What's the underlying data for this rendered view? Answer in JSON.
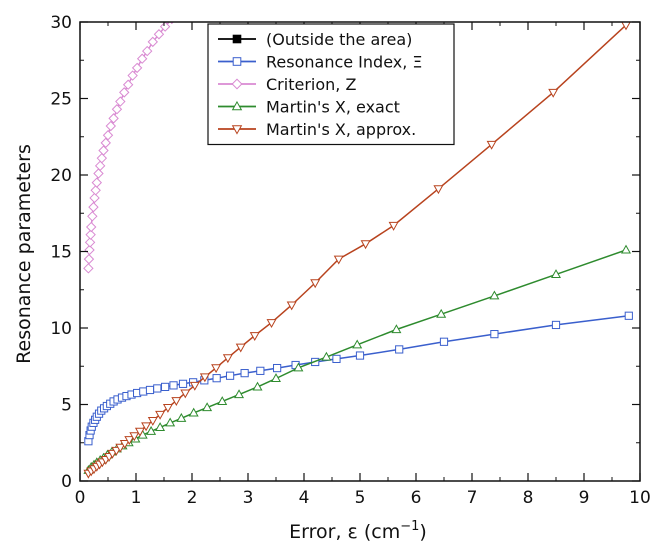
{
  "chart_data": {
    "type": "line",
    "xlabel": "Error, ε (cm",
    "xlabel_sup": "−1",
    "xlabel_close": ")",
    "ylabel": "Resonance parameters",
    "xlim": [
      0,
      10
    ],
    "ylim": [
      0,
      30
    ],
    "xticks": [
      0,
      1,
      2,
      3,
      4,
      5,
      6,
      7,
      8,
      9,
      10
    ],
    "yticks": [
      0,
      5,
      10,
      15,
      20,
      25,
      30
    ],
    "grid": false,
    "legend_position": "top-right",
    "series": [
      {
        "name": "(Outside the area)",
        "color": "#000000",
        "marker": "filled-square",
        "x": [],
        "y": []
      },
      {
        "name": "Resonance Index, Ξ",
        "color": "#3a5fcd",
        "marker": "square",
        "x": [
          0.15,
          0.17,
          0.19,
          0.21,
          0.24,
          0.27,
          0.3,
          0.34,
          0.38,
          0.43,
          0.48,
          0.54,
          0.6,
          0.67,
          0.75,
          0.83,
          0.92,
          1.02,
          1.13,
          1.25,
          1.38,
          1.52,
          1.67,
          1.84,
          2.02,
          2.22,
          2.44,
          2.68,
          2.94,
          3.22,
          3.52,
          3.85,
          4.2,
          4.58,
          5.0,
          5.7,
          6.5,
          7.4,
          8.5,
          9.8
        ],
        "y": [
          2.6,
          3.0,
          3.3,
          3.55,
          3.8,
          4.0,
          4.2,
          4.4,
          4.6,
          4.75,
          4.9,
          5.05,
          5.2,
          5.33,
          5.45,
          5.55,
          5.65,
          5.75,
          5.85,
          5.95,
          6.05,
          6.15,
          6.25,
          6.35,
          6.45,
          6.58,
          6.72,
          6.88,
          7.05,
          7.2,
          7.38,
          7.58,
          7.78,
          7.98,
          8.2,
          8.6,
          9.1,
          9.6,
          10.2,
          10.8
        ]
      },
      {
        "name": "Criterion, Z",
        "color": "#d98ad2",
        "marker": "diamond",
        "x": [
          0.15,
          0.16,
          0.17,
          0.18,
          0.19,
          0.2,
          0.22,
          0.24,
          0.26,
          0.28,
          0.3,
          0.33,
          0.36,
          0.39,
          0.42,
          0.46,
          0.5,
          0.55,
          0.6,
          0.66,
          0.72,
          0.79,
          0.86,
          0.94,
          1.02,
          1.11,
          1.2,
          1.3,
          1.41,
          1.52,
          1.64,
          1.76,
          1.88
        ],
        "y": [
          13.9,
          14.5,
          15.1,
          15.6,
          16.1,
          16.6,
          17.3,
          17.9,
          18.5,
          19.0,
          19.5,
          20.1,
          20.6,
          21.1,
          21.6,
          22.1,
          22.6,
          23.2,
          23.7,
          24.3,
          24.8,
          25.4,
          25.9,
          26.5,
          27.0,
          27.6,
          28.1,
          28.7,
          29.2,
          29.7,
          30.2,
          30.7,
          31.2
        ]
      },
      {
        "name": "Martin's X, exact",
        "color": "#2e8b2e",
        "marker": "triangle-up",
        "x": [
          0.15,
          0.2,
          0.25,
          0.3,
          0.36,
          0.42,
          0.49,
          0.57,
          0.66,
          0.76,
          0.87,
          0.99,
          1.12,
          1.27,
          1.43,
          1.61,
          1.81,
          2.03,
          2.27,
          2.54,
          2.84,
          3.17,
          3.5,
          3.9,
          4.4,
          4.95,
          5.65,
          6.45,
          7.4,
          8.5,
          9.75
        ],
        "y": [
          0.7,
          0.9,
          1.05,
          1.2,
          1.35,
          1.5,
          1.7,
          1.9,
          2.1,
          2.3,
          2.5,
          2.75,
          3.0,
          3.25,
          3.5,
          3.8,
          4.1,
          4.45,
          4.8,
          5.2,
          5.65,
          6.15,
          6.7,
          7.4,
          8.1,
          8.9,
          9.9,
          10.9,
          12.1,
          13.5,
          15.1
        ]
      },
      {
        "name": "Martin's X, approx.",
        "color": "#b8431e",
        "marker": "triangle-down",
        "x": [
          0.15,
          0.2,
          0.25,
          0.3,
          0.35,
          0.4,
          0.46,
          0.52,
          0.58,
          0.65,
          0.72,
          0.8,
          0.88,
          0.97,
          1.07,
          1.18,
          1.3,
          1.43,
          1.57,
          1.72,
          1.88,
          2.05,
          2.23,
          2.43,
          2.64,
          2.87,
          3.12,
          3.42,
          3.78,
          4.2,
          4.62,
          5.1,
          5.6,
          6.4,
          7.35,
          8.45,
          9.75
        ],
        "y": [
          0.5,
          0.65,
          0.8,
          0.95,
          1.1,
          1.25,
          1.4,
          1.6,
          1.8,
          2.0,
          2.2,
          2.45,
          2.7,
          2.95,
          3.25,
          3.6,
          3.95,
          4.35,
          4.8,
          5.25,
          5.75,
          6.25,
          6.8,
          7.4,
          8.05,
          8.75,
          9.5,
          10.35,
          11.5,
          12.95,
          14.5,
          15.5,
          16.7,
          19.1,
          22.0,
          25.4,
          29.8
        ]
      }
    ]
  }
}
